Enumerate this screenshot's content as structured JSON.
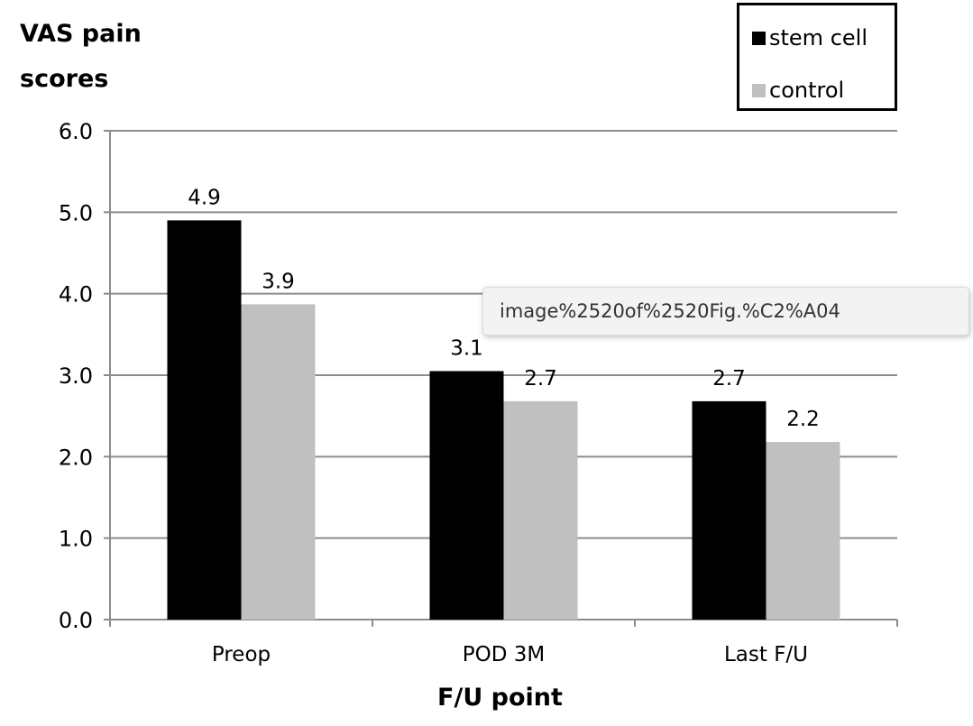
{
  "chart_data": {
    "type": "bar",
    "ylabel": [
      "VAS pain",
      "scores"
    ],
    "xlabel": "F/U point",
    "categories": [
      "Preop",
      "POD 3M",
      "Last F/U"
    ],
    "series": [
      {
        "name": "stem cell",
        "color": "#000000",
        "values": [
          4.9,
          3.05,
          2.68
        ],
        "labels": [
          "4.9",
          "3.1",
          "2.7"
        ]
      },
      {
        "name": "control",
        "color": "#c0c0c0",
        "values": [
          3.87,
          2.68,
          2.18
        ],
        "labels": [
          "3.9",
          "2.7",
          "2.2"
        ]
      }
    ],
    "ylim": [
      0,
      6
    ],
    "yticks": [
      "0.0",
      "1.0",
      "2.0",
      "3.0",
      "4.0",
      "5.0",
      "6.0"
    ],
    "grid": true,
    "legend_position": "top-right"
  },
  "tooltip": {
    "text": "image%2520of%2520Fig.%C2%A04"
  }
}
